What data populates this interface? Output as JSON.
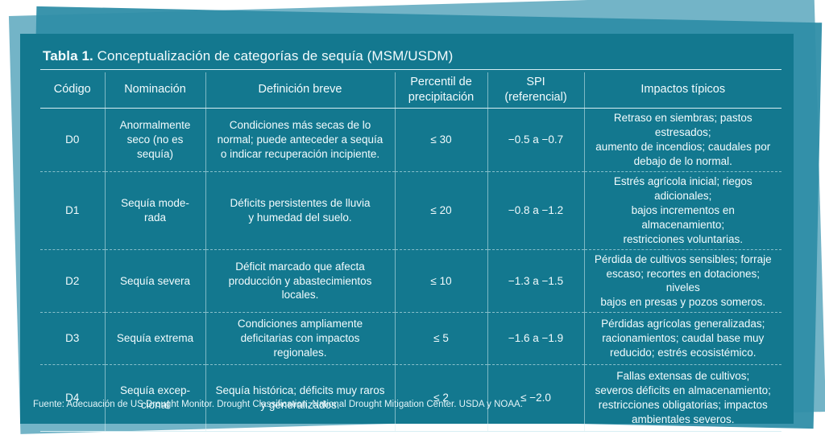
{
  "title": {
    "prefix": "Tabla 1.",
    "text": "Conceptualización de categorías de sequía (MSM/USDM)"
  },
  "headers": [
    "Código",
    "Nominación",
    "Definición breve",
    "Percentil de\nprecipitación",
    "SPI\n(referencial)",
    "Impactos típicos"
  ],
  "rows": [
    {
      "code": "D0",
      "name": "Anormalmente\nseco (no es\nsequía)",
      "definition": "Condiciones más secas de lo\nnormal; puede anteceder a sequía\no indicar recuperación incipiente.",
      "percentile": "≤ 30",
      "spi": "−0.5 a −0.7",
      "impacts": "Retraso en siembras; pastos estresados;\naumento de incendios; caudales por\ndebajo de lo normal."
    },
    {
      "code": "D1",
      "name": "Sequía mode-\nrada",
      "definition": "Déficits persistentes de lluvia\ny humedad del suelo.",
      "percentile": "≤ 20",
      "spi": "−0.8 a −1.2",
      "impacts": "Estrés agrícola inicial; riegos adicionales;\nbajos incrementos en almacenamiento;\nrestricciones voluntarias."
    },
    {
      "code": "D2",
      "name": "Sequía severa",
      "definition": "Déficit marcado que afecta\nproducción y abastecimientos\nlocales.",
      "percentile": "≤ 10",
      "spi": "−1.3 a −1.5",
      "impacts": "Pérdida de cultivos sensibles; forraje\nescaso; recortes en dotaciones; niveles\nbajos en presas y pozos someros."
    },
    {
      "code": "D3",
      "name": "Sequía extrema",
      "definition": "Condiciones ampliamente\ndeficitarias con impactos\nregionales.",
      "percentile": "≤ 5",
      "spi": "−1.6 a −1.9",
      "impacts": "Pérdidas agrícolas generalizadas;\nracionamientos; caudal base muy\nreducido; estrés ecosistémico."
    },
    {
      "code": "D4",
      "name": "Sequía excep-\ncional",
      "definition": "Sequía histórica; déficits muy raros\ny generalizados.",
      "percentile": "≤ 2",
      "spi": "≤ −2.0",
      "impacts": "Fallas extensas de cultivos;\nseveros déficits en almacenamiento;\nrestricciones obligatorias; impactos\nambientales severos."
    }
  ],
  "source": "Fuente: Adecuación de US Drought Monitor. Drought Classification. National Drought Mitigation Center. USDA y NOAA."
}
